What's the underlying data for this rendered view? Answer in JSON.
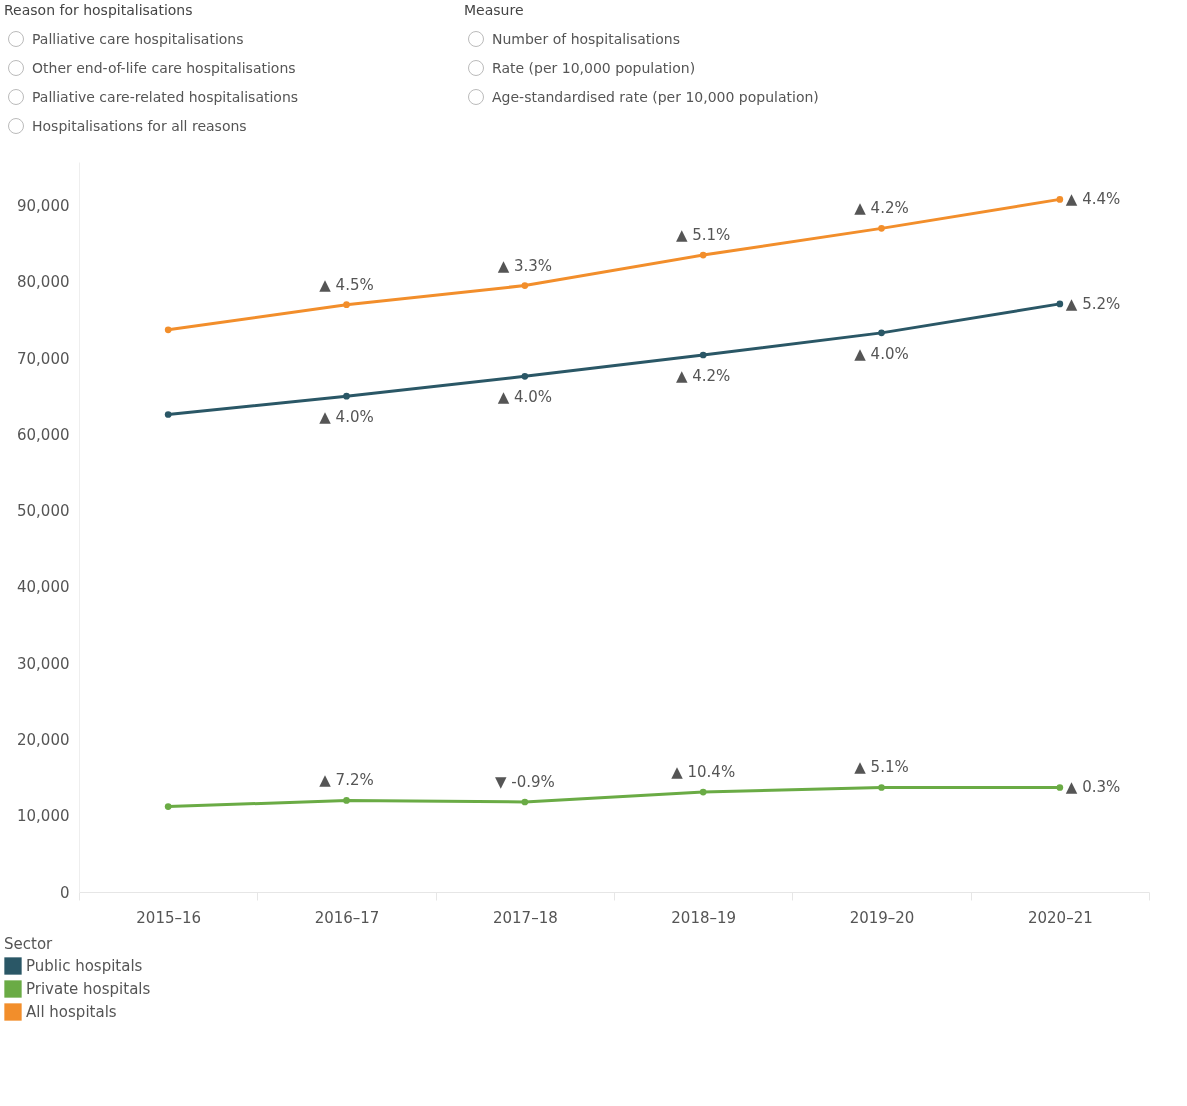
{
  "chart_data": {
    "type": "line",
    "categories": [
      "2015–16",
      "2016–17",
      "2017–18",
      "2018–19",
      "2019–20",
      "2020–21"
    ],
    "series": [
      {
        "name": "Public hospitals",
        "color": "#2a5766",
        "values": [
          62600,
          65000,
          67600,
          70400,
          73300,
          77100
        ]
      },
      {
        "name": "Private hospitals",
        "color": "#6aab45",
        "values": [
          11200,
          12000,
          11800,
          13100,
          13700,
          13700
        ]
      },
      {
        "name": "All hospitals",
        "color": "#f28e2b",
        "values": [
          73700,
          77000,
          79500,
          83500,
          87000,
          90800
        ]
      }
    ],
    "ylim": [
      0,
      95700
    ],
    "yticks": [
      0,
      {
        "value": 10000,
        "label": "10,000"
      },
      {
        "value": 20000,
        "label": "20,000"
      },
      {
        "value": 30000,
        "label": "30,000"
      },
      {
        "value": 40000,
        "label": "40,000"
      },
      {
        "value": 50000,
        "label": "50,000"
      },
      {
        "value": 60000,
        "label": "60,000"
      },
      {
        "value": 70000,
        "label": "70,000"
      },
      {
        "value": 80000,
        "label": "80,000"
      },
      {
        "value": 90000,
        "label": "90,000"
      }
    ],
    "legend": "bottom",
    "legend_title": "Sector",
    "marker": "circle",
    "grid": false,
    "annotations": [
      "Reason for hospitalisations",
      "Palliative care hospitalisations",
      "Other end-of-life care hospitalisations",
      "Palliative care-related hospitalisations",
      "Hospitalisations for all reasons",
      "Measure",
      "Number of hospitalisations",
      "Rate (per 10,000 population)",
      "Age-standardised rate (per 10,000 population)",
      {
        "text": "▲ 4.5%",
        "x": "2016–17",
        "y": 77000
      },
      {
        "text": "▲ 3.3%",
        "x": "2017–18",
        "y": 79500
      },
      {
        "text": "▲ 5.1%",
        "x": "2018–19",
        "y": 83500
      },
      {
        "text": "▲ 4.2%",
        "x": "2019–20",
        "y": 87000
      },
      {
        "text": "▲ 4.4%",
        "x": "2020–21",
        "y": 90800
      },
      {
        "text": "▲ 4.0%",
        "x": "2016–17",
        "y": 65000
      },
      {
        "text": "▲ 4.0%",
        "x": "2017–18",
        "y": 67600
      },
      {
        "text": "▲ 4.2%",
        "x": "2018–19",
        "y": 70400
      },
      {
        "text": "▲ 4.0%",
        "x": "2019–20",
        "y": 73300
      },
      {
        "text": "▲ 5.2%",
        "x": "2020–21",
        "y": 77100
      },
      {
        "text": "▲ 7.2%",
        "x": "2016–17",
        "y": 12000
      },
      {
        "text": "▼ -0.9%",
        "x": "2017–18",
        "y": 11800
      },
      {
        "text": "▲ 10.4%",
        "x": "2018–19",
        "y": 13100
      },
      {
        "text": "▲ 5.1%",
        "x": "2019–20",
        "y": 13700
      },
      {
        "text": "▲ 0.3%",
        "x": "2020–21",
        "y": 13700
      }
    ]
  }
}
